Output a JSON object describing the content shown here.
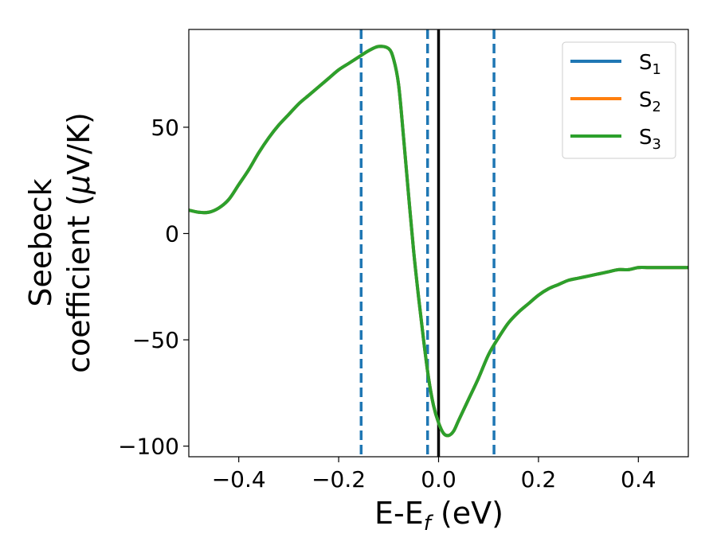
{
  "chart_data": {
    "type": "line",
    "title": "",
    "xlabel": {
      "main": "E-E",
      "sub": "f",
      "tail": " (eV)"
    },
    "ylabel": {
      "line1": "Seebeck",
      "line2_pre": "coefficient  (",
      "mu": "μ",
      "line2_post": "V/K)"
    },
    "xlim": [
      -0.5,
      0.5
    ],
    "ylim": [
      -105,
      96
    ],
    "xticks": [
      -0.4,
      -0.2,
      0.0,
      0.2,
      0.4
    ],
    "xtick_labels": [
      "−0.4",
      "−0.2",
      "0.0",
      "0.2",
      "0.4"
    ],
    "yticks": [
      50,
      0,
      -50,
      -100
    ],
    "ytick_labels": [
      "50",
      "0",
      "−50",
      "−100"
    ],
    "grid": false,
    "legend_position": "top-right",
    "vlines": [
      {
        "x": -0.155,
        "style": "dashed",
        "color": "#1f77b4"
      },
      {
        "x": -0.022,
        "style": "dashed",
        "color": "#1f77b4"
      },
      {
        "x": 0.0,
        "style": "solid",
        "color": "#000000"
      },
      {
        "x": 0.111,
        "style": "dashed",
        "color": "#1f77b4"
      }
    ],
    "x": [
      -0.5,
      -0.48,
      -0.46,
      -0.44,
      -0.42,
      -0.4,
      -0.38,
      -0.36,
      -0.34,
      -0.32,
      -0.3,
      -0.28,
      -0.26,
      -0.24,
      -0.22,
      -0.2,
      -0.18,
      -0.16,
      -0.14,
      -0.12,
      -0.1,
      -0.09,
      -0.08,
      -0.07,
      -0.06,
      -0.05,
      -0.04,
      -0.03,
      -0.02,
      -0.01,
      0.0,
      0.01,
      0.02,
      0.03,
      0.04,
      0.06,
      0.08,
      0.1,
      0.12,
      0.14,
      0.16,
      0.18,
      0.2,
      0.22,
      0.24,
      0.26,
      0.28,
      0.3,
      0.32,
      0.34,
      0.36,
      0.38,
      0.4,
      0.42,
      0.44,
      0.46,
      0.48,
      0.5
    ],
    "series": [
      {
        "name": "S1",
        "label_main": "S",
        "label_sub": "1",
        "color": "#1f77b4",
        "values": [
          11,
          10,
          10,
          12,
          16,
          23,
          30,
          38,
          45,
          51,
          56,
          61,
          65,
          69,
          73,
          77,
          80,
          83,
          86,
          88,
          87,
          82,
          70,
          45,
          18,
          -8,
          -30,
          -50,
          -68,
          -81,
          -89,
          -94,
          -95,
          -93,
          -88,
          -78,
          -68,
          -57,
          -49,
          -42,
          -37,
          -33,
          -29,
          -26,
          -24,
          -22,
          -21,
          -20,
          -19,
          -18,
          -17,
          -17,
          -16,
          -16,
          -16,
          -16,
          -16,
          -16
        ]
      },
      {
        "name": "S2",
        "label_main": "S",
        "label_sub": "2",
        "color": "#ff7f0e",
        "values": [
          11,
          10,
          10,
          12,
          16,
          23,
          30,
          38,
          45,
          51,
          56,
          61,
          65,
          69,
          73,
          77,
          80,
          83,
          86,
          88,
          87,
          82,
          70,
          45,
          18,
          -8,
          -30,
          -50,
          -68,
          -81,
          -89,
          -94,
          -95,
          -93,
          -88,
          -78,
          -68,
          -57,
          -49,
          -42,
          -37,
          -33,
          -29,
          -26,
          -24,
          -22,
          -21,
          -20,
          -19,
          -18,
          -17,
          -17,
          -16,
          -16,
          -16,
          -16,
          -16,
          -16
        ]
      },
      {
        "name": "S3",
        "label_main": "S",
        "label_sub": "3",
        "color": "#2ca02c",
        "values": [
          11,
          10,
          10,
          12,
          16,
          23,
          30,
          38,
          45,
          51,
          56,
          61,
          65,
          69,
          73,
          77,
          80,
          83,
          86,
          88,
          87,
          82,
          70,
          45,
          18,
          -8,
          -30,
          -50,
          -68,
          -81,
          -89,
          -94,
          -95,
          -93,
          -88,
          -78,
          -68,
          -57,
          -49,
          -42,
          -37,
          -33,
          -29,
          -26,
          -24,
          -22,
          -21,
          -20,
          -19,
          -18,
          -17,
          -17,
          -16,
          -16,
          -16,
          -16,
          -16,
          -16
        ]
      }
    ]
  }
}
